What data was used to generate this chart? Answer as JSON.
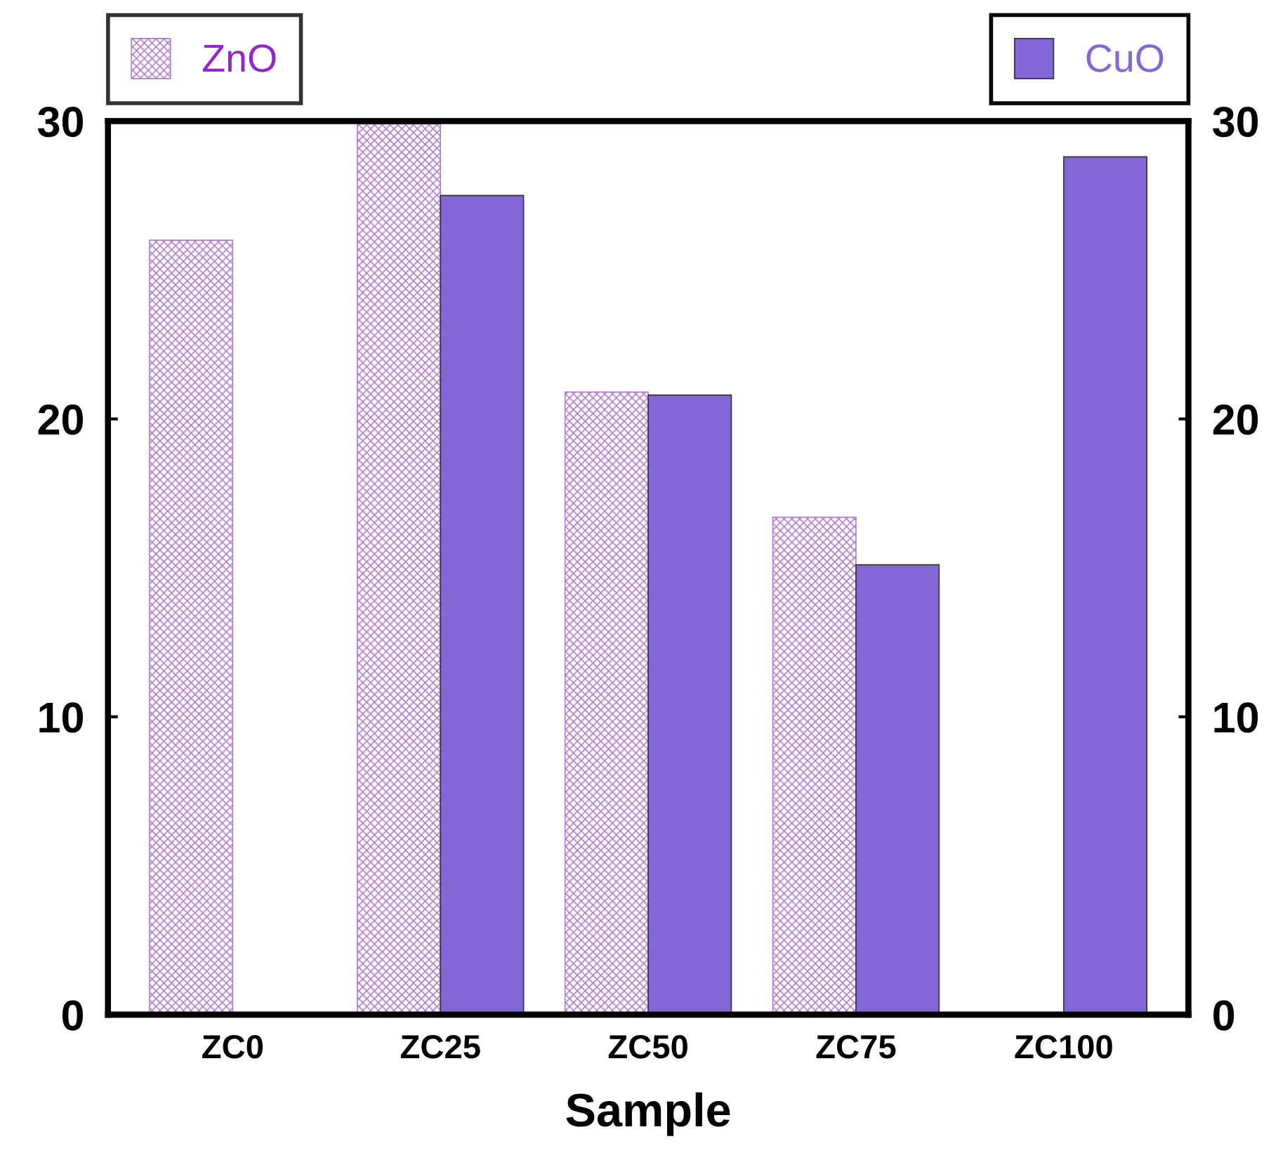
{
  "chart_data": {
    "type": "bar",
    "xlabel": "Sample",
    "categories": [
      "ZC0",
      "ZC25",
      "ZC50",
      "ZC75",
      "ZC100"
    ],
    "series": [
      {
        "name": "ZnO",
        "color": "#b07cc8",
        "values": [
          26.0,
          29.9,
          20.9,
          16.7,
          null
        ]
      },
      {
        "name": "CuO",
        "color": "#8467d7",
        "values": [
          null,
          27.5,
          20.8,
          15.1,
          28.8
        ]
      }
    ],
    "ylim": [
      0,
      30
    ],
    "yticks": [
      0,
      10,
      20,
      30
    ],
    "y2lim": [
      0,
      30
    ],
    "y2ticks": [
      0,
      10,
      20,
      30
    ],
    "grid": false,
    "legend": "top"
  }
}
